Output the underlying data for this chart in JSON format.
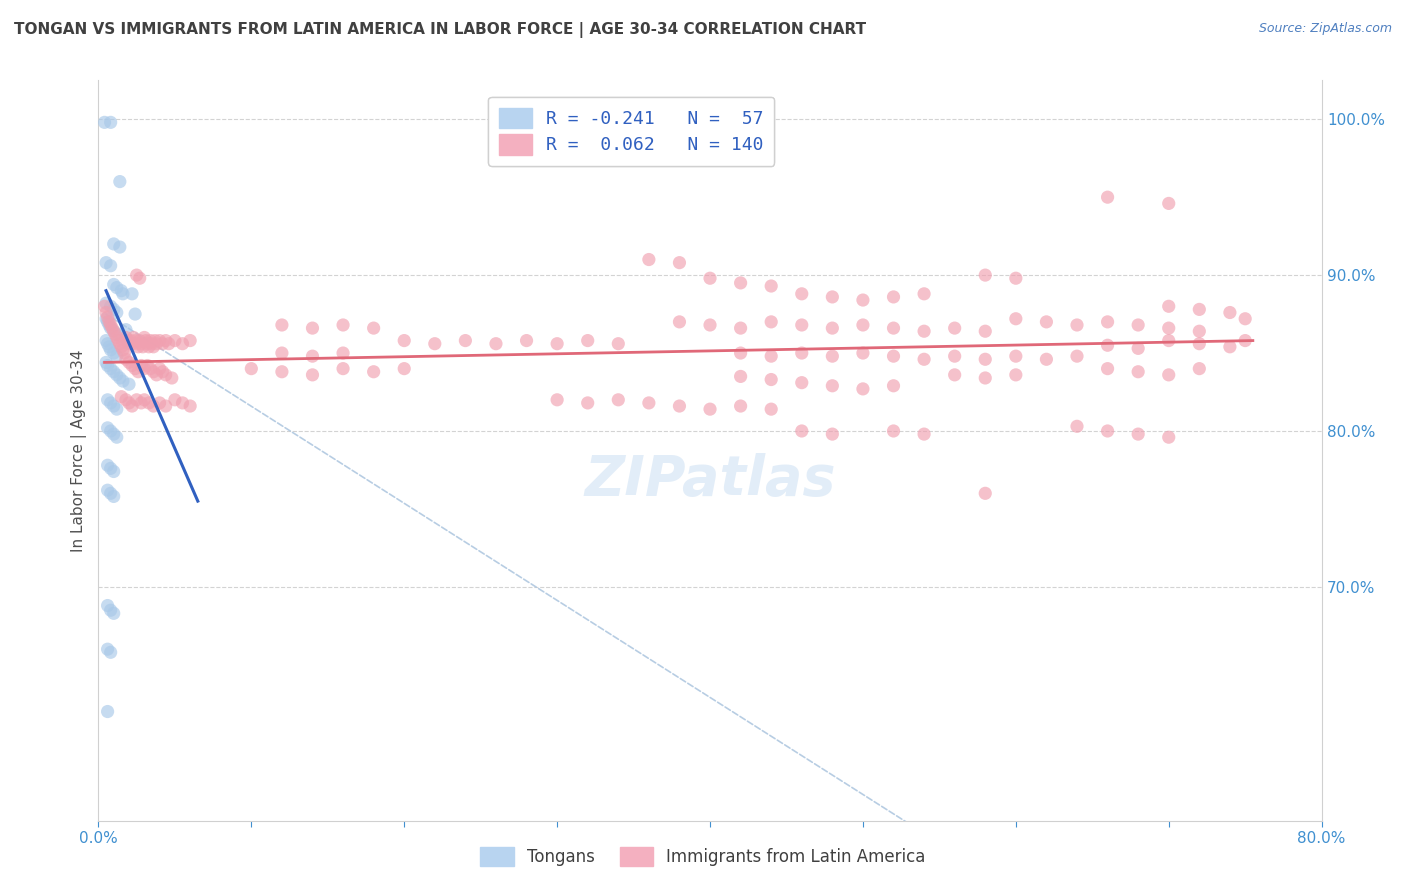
{
  "title": "TONGAN VS IMMIGRANTS FROM LATIN AMERICA IN LABOR FORCE | AGE 30-34 CORRELATION CHART",
  "source": "Source: ZipAtlas.com",
  "ylabel": "In Labor Force | Age 30-34",
  "x_min": 0.0,
  "x_max": 0.8,
  "y_min": 0.55,
  "y_max": 1.025,
  "blue_color": "#a8c8e8",
  "pink_color": "#f0a0b0",
  "blue_line_color": "#3060c0",
  "pink_line_color": "#e06878",
  "dashed_line_color": "#b0c8e0",
  "watermark": "ZIPatlas",
  "grid_color": "#c8c8c8",
  "title_color": "#404040",
  "source_color": "#5080c0",
  "tick_color_right": "#4090d0",
  "scatter_alpha": 0.65,
  "scatter_size": 90,
  "tongan_scatter": [
    [
      0.004,
      0.998
    ],
    [
      0.008,
      0.998
    ],
    [
      0.014,
      0.96
    ],
    [
      0.01,
      0.92
    ],
    [
      0.014,
      0.918
    ],
    [
      0.005,
      0.908
    ],
    [
      0.008,
      0.906
    ],
    [
      0.01,
      0.894
    ],
    [
      0.012,
      0.892
    ],
    [
      0.015,
      0.89
    ],
    [
      0.016,
      0.888
    ],
    [
      0.005,
      0.882
    ],
    [
      0.008,
      0.88
    ],
    [
      0.01,
      0.878
    ],
    [
      0.012,
      0.876
    ],
    [
      0.005,
      0.872
    ],
    [
      0.006,
      0.87
    ],
    [
      0.007,
      0.868
    ],
    [
      0.008,
      0.866
    ],
    [
      0.01,
      0.864
    ],
    [
      0.012,
      0.862
    ],
    [
      0.005,
      0.858
    ],
    [
      0.006,
      0.856
    ],
    [
      0.007,
      0.854
    ],
    [
      0.008,
      0.852
    ],
    [
      0.01,
      0.85
    ],
    [
      0.012,
      0.848
    ],
    [
      0.005,
      0.844
    ],
    [
      0.006,
      0.842
    ],
    [
      0.008,
      0.84
    ],
    [
      0.01,
      0.838
    ],
    [
      0.012,
      0.836
    ],
    [
      0.014,
      0.834
    ],
    [
      0.016,
      0.832
    ],
    [
      0.02,
      0.83
    ],
    [
      0.022,
      0.888
    ],
    [
      0.024,
      0.875
    ],
    [
      0.018,
      0.865
    ],
    [
      0.006,
      0.82
    ],
    [
      0.008,
      0.818
    ],
    [
      0.01,
      0.816
    ],
    [
      0.012,
      0.814
    ],
    [
      0.006,
      0.802
    ],
    [
      0.008,
      0.8
    ],
    [
      0.01,
      0.798
    ],
    [
      0.012,
      0.796
    ],
    [
      0.006,
      0.778
    ],
    [
      0.008,
      0.776
    ],
    [
      0.01,
      0.774
    ],
    [
      0.006,
      0.762
    ],
    [
      0.008,
      0.76
    ],
    [
      0.01,
      0.758
    ],
    [
      0.006,
      0.688
    ],
    [
      0.008,
      0.685
    ],
    [
      0.01,
      0.683
    ],
    [
      0.006,
      0.66
    ],
    [
      0.008,
      0.658
    ],
    [
      0.006,
      0.62
    ]
  ],
  "latin_scatter": [
    [
      0.004,
      0.88
    ],
    [
      0.005,
      0.876
    ],
    [
      0.006,
      0.873
    ],
    [
      0.007,
      0.87
    ],
    [
      0.008,
      0.868
    ],
    [
      0.009,
      0.866
    ],
    [
      0.01,
      0.864
    ],
    [
      0.011,
      0.862
    ],
    [
      0.012,
      0.86
    ],
    [
      0.013,
      0.858
    ],
    [
      0.014,
      0.856
    ],
    [
      0.015,
      0.854
    ],
    [
      0.016,
      0.852
    ],
    [
      0.017,
      0.85
    ],
    [
      0.018,
      0.86
    ],
    [
      0.019,
      0.858
    ],
    [
      0.02,
      0.856
    ],
    [
      0.021,
      0.858
    ],
    [
      0.022,
      0.856
    ],
    [
      0.023,
      0.86
    ],
    [
      0.024,
      0.858
    ],
    [
      0.025,
      0.856
    ],
    [
      0.026,
      0.854
    ],
    [
      0.027,
      0.858
    ],
    [
      0.028,
      0.856
    ],
    [
      0.029,
      0.854
    ],
    [
      0.03,
      0.86
    ],
    [
      0.031,
      0.858
    ],
    [
      0.032,
      0.856
    ],
    [
      0.033,
      0.854
    ],
    [
      0.034,
      0.858
    ],
    [
      0.035,
      0.856
    ],
    [
      0.036,
      0.854
    ],
    [
      0.037,
      0.858
    ],
    [
      0.038,
      0.856
    ],
    [
      0.04,
      0.858
    ],
    [
      0.042,
      0.856
    ],
    [
      0.044,
      0.858
    ],
    [
      0.046,
      0.856
    ],
    [
      0.05,
      0.858
    ],
    [
      0.055,
      0.856
    ],
    [
      0.06,
      0.858
    ],
    [
      0.018,
      0.846
    ],
    [
      0.02,
      0.844
    ],
    [
      0.022,
      0.842
    ],
    [
      0.024,
      0.84
    ],
    [
      0.026,
      0.838
    ],
    [
      0.028,
      0.842
    ],
    [
      0.03,
      0.84
    ],
    [
      0.032,
      0.842
    ],
    [
      0.034,
      0.84
    ],
    [
      0.036,
      0.838
    ],
    [
      0.038,
      0.836
    ],
    [
      0.04,
      0.84
    ],
    [
      0.042,
      0.838
    ],
    [
      0.044,
      0.836
    ],
    [
      0.048,
      0.834
    ],
    [
      0.025,
      0.9
    ],
    [
      0.027,
      0.898
    ],
    [
      0.015,
      0.822
    ],
    [
      0.018,
      0.82
    ],
    [
      0.02,
      0.818
    ],
    [
      0.022,
      0.816
    ],
    [
      0.025,
      0.82
    ],
    [
      0.028,
      0.818
    ],
    [
      0.03,
      0.82
    ],
    [
      0.033,
      0.818
    ],
    [
      0.036,
      0.816
    ],
    [
      0.04,
      0.818
    ],
    [
      0.044,
      0.816
    ],
    [
      0.05,
      0.82
    ],
    [
      0.055,
      0.818
    ],
    [
      0.06,
      0.816
    ],
    [
      0.12,
      0.868
    ],
    [
      0.14,
      0.866
    ],
    [
      0.16,
      0.868
    ],
    [
      0.18,
      0.866
    ],
    [
      0.2,
      0.858
    ],
    [
      0.22,
      0.856
    ],
    [
      0.24,
      0.858
    ],
    [
      0.26,
      0.856
    ],
    [
      0.28,
      0.858
    ],
    [
      0.3,
      0.856
    ],
    [
      0.32,
      0.858
    ],
    [
      0.34,
      0.856
    ],
    [
      0.12,
      0.85
    ],
    [
      0.14,
      0.848
    ],
    [
      0.16,
      0.85
    ],
    [
      0.1,
      0.84
    ],
    [
      0.12,
      0.838
    ],
    [
      0.14,
      0.836
    ],
    [
      0.16,
      0.84
    ],
    [
      0.18,
      0.838
    ],
    [
      0.2,
      0.84
    ],
    [
      0.36,
      0.91
    ],
    [
      0.38,
      0.908
    ],
    [
      0.4,
      0.898
    ],
    [
      0.42,
      0.895
    ],
    [
      0.44,
      0.893
    ],
    [
      0.46,
      0.888
    ],
    [
      0.48,
      0.886
    ],
    [
      0.5,
      0.884
    ],
    [
      0.52,
      0.886
    ],
    [
      0.54,
      0.888
    ],
    [
      0.38,
      0.87
    ],
    [
      0.4,
      0.868
    ],
    [
      0.42,
      0.866
    ],
    [
      0.44,
      0.87
    ],
    [
      0.46,
      0.868
    ],
    [
      0.48,
      0.866
    ],
    [
      0.5,
      0.868
    ],
    [
      0.52,
      0.866
    ],
    [
      0.54,
      0.864
    ],
    [
      0.56,
      0.866
    ],
    [
      0.58,
      0.864
    ],
    [
      0.6,
      0.872
    ],
    [
      0.62,
      0.87
    ],
    [
      0.64,
      0.868
    ],
    [
      0.42,
      0.85
    ],
    [
      0.44,
      0.848
    ],
    [
      0.46,
      0.85
    ],
    [
      0.48,
      0.848
    ],
    [
      0.5,
      0.85
    ],
    [
      0.52,
      0.848
    ],
    [
      0.54,
      0.846
    ],
    [
      0.56,
      0.848
    ],
    [
      0.58,
      0.846
    ],
    [
      0.6,
      0.848
    ],
    [
      0.62,
      0.846
    ],
    [
      0.64,
      0.848
    ],
    [
      0.42,
      0.835
    ],
    [
      0.44,
      0.833
    ],
    [
      0.46,
      0.831
    ],
    [
      0.48,
      0.829
    ],
    [
      0.5,
      0.827
    ],
    [
      0.52,
      0.829
    ],
    [
      0.3,
      0.82
    ],
    [
      0.32,
      0.818
    ],
    [
      0.34,
      0.82
    ],
    [
      0.36,
      0.818
    ],
    [
      0.38,
      0.816
    ],
    [
      0.4,
      0.814
    ],
    [
      0.42,
      0.816
    ],
    [
      0.44,
      0.814
    ],
    [
      0.66,
      0.95
    ],
    [
      0.7,
      0.946
    ],
    [
      0.58,
      0.9
    ],
    [
      0.6,
      0.898
    ],
    [
      0.66,
      0.87
    ],
    [
      0.68,
      0.868
    ],
    [
      0.7,
      0.866
    ],
    [
      0.72,
      0.864
    ],
    [
      0.66,
      0.855
    ],
    [
      0.68,
      0.853
    ],
    [
      0.7,
      0.858
    ],
    [
      0.72,
      0.856
    ],
    [
      0.74,
      0.854
    ],
    [
      0.75,
      0.858
    ],
    [
      0.66,
      0.84
    ],
    [
      0.68,
      0.838
    ],
    [
      0.7,
      0.836
    ],
    [
      0.72,
      0.84
    ],
    [
      0.56,
      0.836
    ],
    [
      0.58,
      0.834
    ],
    [
      0.6,
      0.836
    ],
    [
      0.64,
      0.803
    ],
    [
      0.66,
      0.8
    ],
    [
      0.68,
      0.798
    ],
    [
      0.7,
      0.796
    ],
    [
      0.52,
      0.8
    ],
    [
      0.54,
      0.798
    ],
    [
      0.46,
      0.8
    ],
    [
      0.48,
      0.798
    ],
    [
      0.58,
      0.76
    ],
    [
      0.7,
      0.88
    ],
    [
      0.72,
      0.878
    ],
    [
      0.74,
      0.876
    ],
    [
      0.75,
      0.872
    ]
  ],
  "blue_trend_x": [
    0.005,
    0.065
  ],
  "blue_trend_y": [
    0.89,
    0.755
  ],
  "pink_trend_x": [
    0.004,
    0.755
  ],
  "pink_trend_y": [
    0.844,
    0.858
  ]
}
